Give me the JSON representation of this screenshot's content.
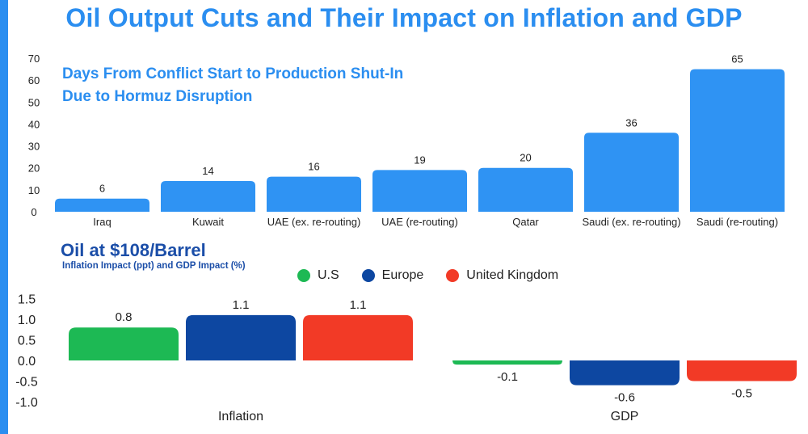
{
  "title": "Oil Output Cuts and Their Impact on Inflation and GDP",
  "chart_data": [
    {
      "type": "bar",
      "title": "Days From Conflict Start to Production Shut-In Due to Hormuz Disruption",
      "title_lines": [
        "Days From Conflict Start to Production Shut-In",
        "Due to Hormuz Disruption"
      ],
      "categories": [
        "Iraq",
        "Kuwait",
        "UAE (ex. re-routing)",
        "UAE (re-routing)",
        "Qatar",
        "Saudi (ex. re-routing)",
        "Saudi (re-routing)"
      ],
      "values": [
        6,
        14,
        16,
        19,
        20,
        36,
        65
      ],
      "ylim": [
        0,
        70
      ],
      "yticks": [
        "0",
        "10",
        "20",
        "30",
        "40",
        "50",
        "60",
        "70"
      ],
      "xlabel": "",
      "ylabel": "",
      "color": "#2f93f3"
    },
    {
      "type": "bar",
      "title": "Oil at $108/Barrel",
      "subtitle": "Inflation Impact (ppt) and GDP Impact (%)",
      "groups": [
        "Inflation",
        "GDP"
      ],
      "series": [
        {
          "name": "U.S",
          "color": "#1db954",
          "values": [
            0.8,
            -0.1
          ],
          "labels": [
            "0.8",
            "-0.1"
          ]
        },
        {
          "name": "Europe",
          "color": "#0d47a1",
          "values": [
            1.1,
            -0.6
          ],
          "labels": [
            "1.1",
            "-0.6"
          ]
        },
        {
          "name": "United Kingdom",
          "color": "#f23a26",
          "values": [
            1.1,
            -0.5
          ],
          "labels": [
            "1.1",
            "-0.5"
          ]
        }
      ],
      "ylim": [
        -1.0,
        1.5
      ],
      "yticks": [
        "-1.0",
        "-0.5",
        "0.0",
        "0.5",
        "1.0",
        "1.5"
      ],
      "legend_position": "top"
    }
  ]
}
